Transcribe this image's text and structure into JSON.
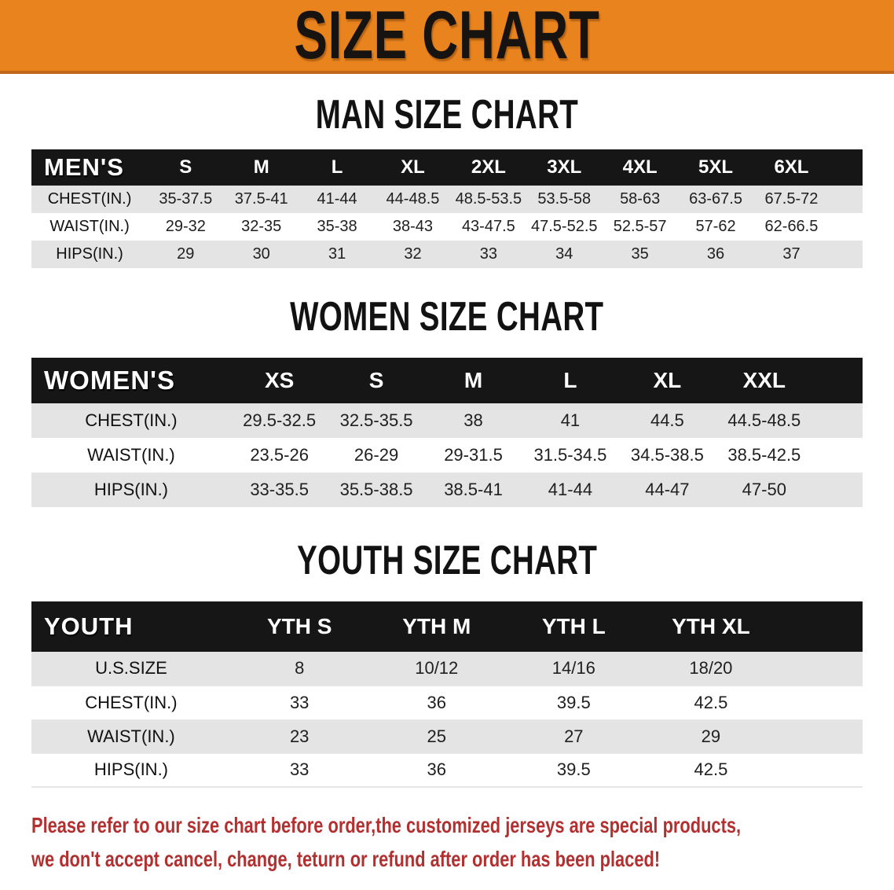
{
  "banner": {
    "title": "SIZE CHART"
  },
  "colors": {
    "banner_bg": "#E9831E",
    "banner_edge": "#C2661A",
    "table_header_bg": "#161616",
    "row_stripe": "#E4E4E4",
    "disclaimer_text": "#B23030"
  },
  "sections": [
    {
      "heading": "MAN SIZE CHART",
      "table": {
        "label": "MEN'S",
        "sizes": [
          "S",
          "M",
          "L",
          "XL",
          "2XL",
          "3XL",
          "4XL",
          "5XL",
          "6XL"
        ],
        "rows": [
          {
            "label": "CHEST(IN.)",
            "values": [
              "35-37.5",
              "37.5-41",
              "41-44",
              "44-48.5",
              "48.5-53.5",
              "53.5-58",
              "58-63",
              "63-67.5",
              "67.5-72"
            ]
          },
          {
            "label": "WAIST(IN.)",
            "values": [
              "29-32",
              "32-35",
              "35-38",
              "38-43",
              "43-47.5",
              "47.5-52.5",
              "52.5-57",
              "57-62",
              "62-66.5"
            ]
          },
          {
            "label": "HIPS(IN.)",
            "values": [
              "29",
              "30",
              "31",
              "32",
              "33",
              "34",
              "35",
              "36",
              "37"
            ]
          }
        ]
      }
    },
    {
      "heading": "WOMEN SIZE CHART",
      "table": {
        "label": "WOMEN'S",
        "sizes": [
          "XS",
          "S",
          "M",
          "L",
          "XL",
          "XXL"
        ],
        "rows": [
          {
            "label": "CHEST(IN.)",
            "values": [
              "29.5-32.5",
              "32.5-35.5",
              "38",
              "41",
              "44.5",
              "44.5-48.5"
            ]
          },
          {
            "label": "WAIST(IN.)",
            "values": [
              "23.5-26",
              "26-29",
              "29-31.5",
              "31.5-34.5",
              "34.5-38.5",
              "38.5-42.5"
            ]
          },
          {
            "label": "HIPS(IN.)",
            "values": [
              "33-35.5",
              "35.5-38.5",
              "38.5-41",
              "41-44",
              "44-47",
              "47-50"
            ]
          }
        ]
      }
    },
    {
      "heading": "YOUTH SIZE CHART",
      "table": {
        "label": "YOUTH",
        "sizes": [
          "YTH S",
          "YTH M",
          "YTH L",
          "YTH XL"
        ],
        "rows": [
          {
            "label": "U.S.SIZE",
            "values": [
              "8",
              "10/12",
              "14/16",
              "18/20"
            ]
          },
          {
            "label": "CHEST(IN.)",
            "values": [
              "33",
              "36",
              "39.5",
              "42.5"
            ]
          },
          {
            "label": "WAIST(IN.)",
            "values": [
              "23",
              "25",
              "27",
              "29"
            ]
          },
          {
            "label": "HIPS(IN.)",
            "values": [
              "33",
              "36",
              "39.5",
              "42.5"
            ]
          }
        ]
      }
    }
  ],
  "disclaimer": {
    "lines": [
      "Please refer to our size chart before order,the customized jerseys are special products,",
      "we don't accept cancel, change, teturn or refund after order has been placed!"
    ]
  }
}
